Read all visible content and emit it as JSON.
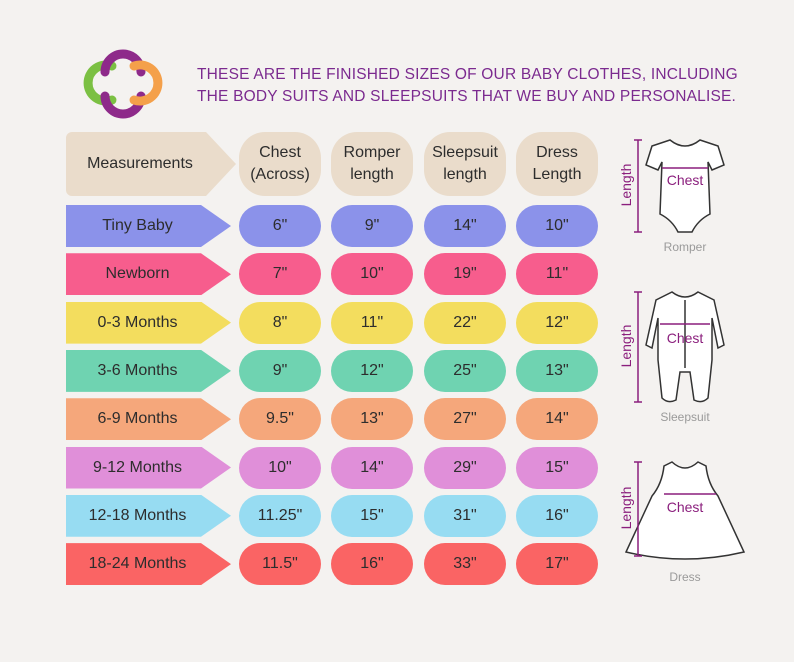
{
  "header": {
    "title_lines": [
      "THESE ARE THE FINISHED SIZES OF OUR BABY CLOTHES, INCLUDING",
      "THE BODY SUITS AND SLEEPSUITS THAT WE BUY AND PERSONALISE."
    ]
  },
  "table": {
    "columns": [
      "Measurements",
      "Chest (Across)",
      "Romper length",
      "Sleepsuit length",
      "Dress Length"
    ],
    "rows": [
      {
        "label": "Tiny Baby",
        "color": "#8b92ea",
        "values": [
          "6\"",
          "9\"",
          "14\"",
          "10\""
        ]
      },
      {
        "label": "Newborn",
        "color": "#f75d8d",
        "values": [
          "7\"",
          "10\"",
          "19\"",
          "11\""
        ]
      },
      {
        "label": "0-3 Months",
        "color": "#f3dd5e",
        "values": [
          "8\"",
          "11\"",
          "22\"",
          "12\""
        ]
      },
      {
        "label": "3-6 Months",
        "color": "#6fd3b1",
        "values": [
          "9\"",
          "12\"",
          "25\"",
          "13\""
        ]
      },
      {
        "label": "6-9 Months",
        "color": "#f5a77b",
        "values": [
          "9.5\"",
          "13\"",
          "27\"",
          "14\""
        ]
      },
      {
        "label": "9-12 Months",
        "color": "#e08fd9",
        "values": [
          "10\"",
          "14\"",
          "29\"",
          "15\""
        ]
      },
      {
        "label": "12-18 Months",
        "color": "#97dcf2",
        "values": [
          "11.25\"",
          "15\"",
          "31\"",
          "16\""
        ]
      },
      {
        "label": "18-24 Months",
        "color": "#fa6464",
        "values": [
          "11.5\"",
          "16\"",
          "33\"",
          "17\""
        ]
      }
    ]
  },
  "diagrams": [
    {
      "caption": "Romper",
      "length_label": "Length",
      "chest_label": "Chest"
    },
    {
      "caption": "Sleepsuit",
      "length_label": "Length",
      "chest_label": "Chest"
    },
    {
      "caption": "Dress",
      "length_label": "Length",
      "chest_label": "Chest"
    }
  ]
}
